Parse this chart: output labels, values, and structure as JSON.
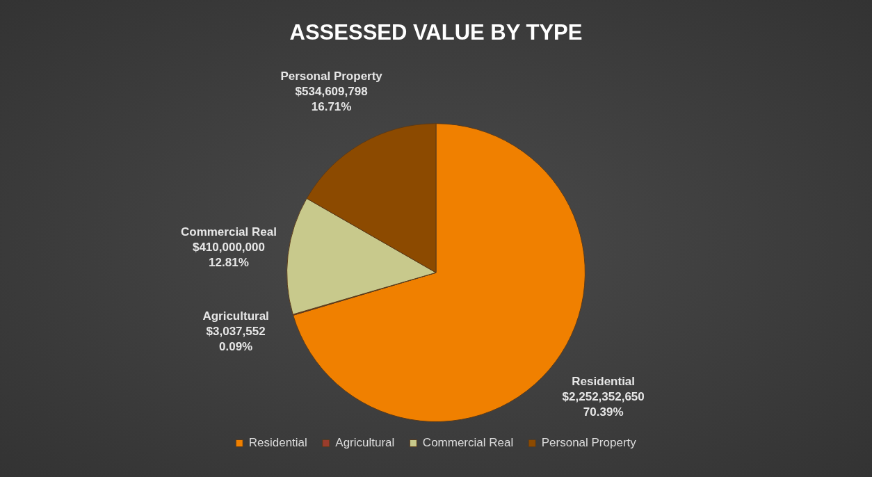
{
  "chart_data": {
    "type": "pie",
    "title": "ASSESSED VALUE BY TYPE",
    "categories": [
      "Residential",
      "Agricultural",
      "Commercial Real",
      "Personal Property"
    ],
    "values": [
      2252352650,
      3037552,
      410000000,
      534609798
    ],
    "colors": [
      "#f08000",
      "#9a3c2c",
      "#c8c98c",
      "#8c4a00"
    ],
    "value_labels": [
      "$2,252,352,650\n70.39%",
      "$3,037,552\n0.09%",
      "$410,000,000\n12.81%",
      "$534,609,798\n16.71%"
    ],
    "legend": "bottom"
  }
}
